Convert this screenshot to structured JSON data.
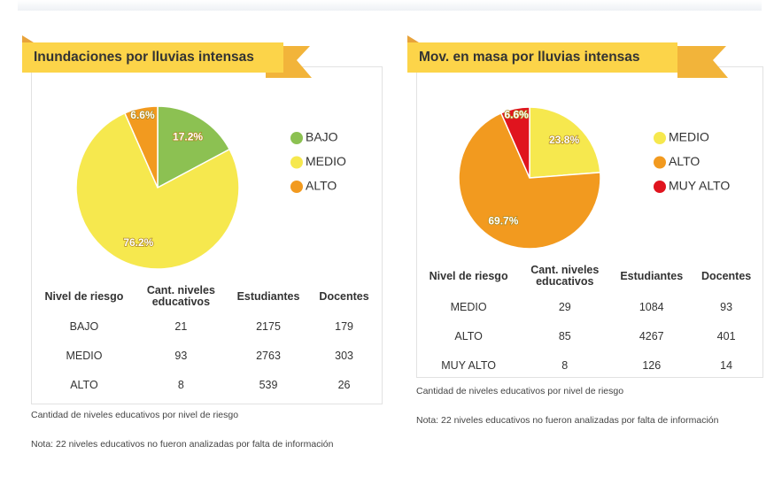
{
  "chart_data": [
    {
      "type": "pie",
      "title": "Inundaciones por lluvias intensas",
      "categories": [
        "BAJO",
        "MEDIO",
        "ALTO"
      ],
      "values": [
        17.2,
        76.2,
        6.6
      ],
      "value_labels": [
        "17.2%",
        "76.2%",
        "6.6%"
      ],
      "colors": [
        "#8cc152",
        "#f6e84e",
        "#f29a1f"
      ],
      "legend": "right"
    },
    {
      "type": "pie",
      "title": "Mov. en masa por lluvias intensas",
      "categories": [
        "MEDIO",
        "ALTO",
        "MUY ALTO"
      ],
      "values": [
        23.8,
        69.7,
        6.6
      ],
      "value_labels": [
        "23.8%",
        "69.7%",
        "6.6%"
      ],
      "colors": [
        "#f6e84e",
        "#f29a1f",
        "#e0141e"
      ],
      "legend": "right"
    }
  ],
  "tables": [
    {
      "columns": [
        "Nivel de riesgo",
        "Cant. niveles educativos",
        "Estudiantes",
        "Docentes"
      ],
      "rows": [
        [
          "BAJO",
          "21",
          "2175",
          "179"
        ],
        [
          "MEDIO",
          "93",
          "2763",
          "303"
        ],
        [
          "ALTO",
          "8",
          "539",
          "26"
        ]
      ]
    },
    {
      "columns": [
        "Nivel de riesgo",
        "Cant. niveles educativos",
        "Estudiantes",
        "Docentes"
      ],
      "rows": [
        [
          "MEDIO",
          "29",
          "1084",
          "93"
        ],
        [
          "ALTO",
          "85",
          "4267",
          "401"
        ],
        [
          "MUY ALTO",
          "8",
          "126",
          "14"
        ]
      ]
    }
  ],
  "notes": [
    [
      "Cantidad de niveles educativos por nivel de riesgo",
      "Nota: 22 niveles educativos no fueron analizadas por falta de información"
    ],
    [
      "Cantidad de niveles educativos por nivel de riesgo",
      "Nota: 22 niveles educativos no fueron analizadas por falta de información"
    ]
  ]
}
